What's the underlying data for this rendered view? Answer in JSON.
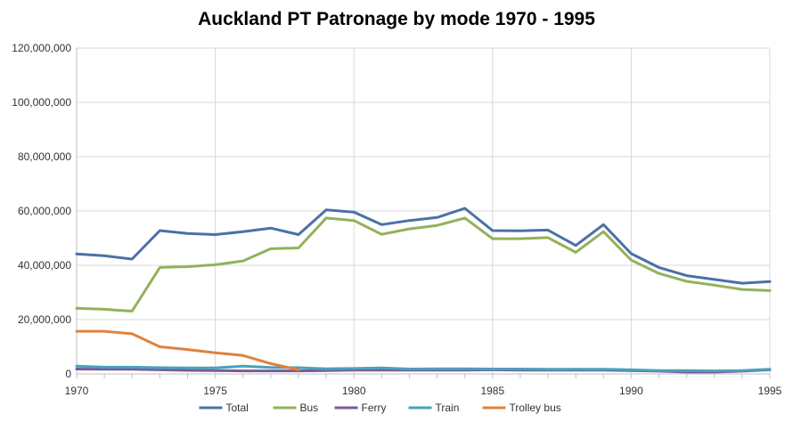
{
  "chart_data": {
    "type": "line",
    "title": "Auckland PT Patronage by mode 1970 - 1995",
    "xlabel": "",
    "ylabel": "",
    "xlim": [
      1970,
      1995
    ],
    "ylim": [
      0,
      120000000
    ],
    "x_ticks": [
      1970,
      1975,
      1980,
      1985,
      1990,
      1995
    ],
    "y_ticks": [
      0,
      20000000,
      40000000,
      60000000,
      80000000,
      100000000,
      120000000
    ],
    "y_tick_labels": [
      "0",
      "20,000,000",
      "40,000,000",
      "60,000,000",
      "80,000,000",
      "100,000,000",
      "120,000,000"
    ],
    "grid": true,
    "legend_position": "bottom",
    "x": [
      1970,
      1971,
      1972,
      1973,
      1974,
      1975,
      1976,
      1977,
      1978,
      1979,
      1980,
      1981,
      1982,
      1983,
      1984,
      1985,
      1986,
      1987,
      1988,
      1989,
      1990,
      1991,
      1992,
      1993,
      1994,
      1995
    ],
    "series": [
      {
        "name": "Total",
        "color": "#4a71a6",
        "values": [
          44200000,
          43500000,
          42300000,
          52800000,
          51700000,
          51300000,
          52400000,
          53700000,
          51300000,
          60400000,
          59600000,
          55000000,
          56500000,
          57600000,
          61000000,
          52800000,
          52700000,
          53000000,
          47300000,
          55000000,
          44300000,
          39200000,
          36200000,
          34800000,
          33400000,
          34000000
        ]
      },
      {
        "name": "Bus",
        "color": "#93b15a",
        "values": [
          24200000,
          23800000,
          23100000,
          39200000,
          39500000,
          40200000,
          41600000,
          46100000,
          46400000,
          57400000,
          56500000,
          51400000,
          53400000,
          54700000,
          57400000,
          49800000,
          49800000,
          50200000,
          44800000,
          52400000,
          41900000,
          37000000,
          34100000,
          32700000,
          31100000,
          30700000
        ]
      },
      {
        "name": "Ferry",
        "color": "#7a5a9a",
        "values": [
          1800000,
          1700000,
          1700000,
          1500000,
          1300000,
          1200000,
          1100000,
          1100000,
          1100000,
          1200000,
          1400000,
          1400000,
          1400000,
          1400000,
          1400000,
          1500000,
          1400000,
          1400000,
          1400000,
          1400000,
          1200000,
          1000000,
          700000,
          700000,
          1000000,
          1500000
        ]
      },
      {
        "name": "Train",
        "color": "#4aa1ba",
        "values": [
          2900000,
          2500000,
          2500000,
          2300000,
          2200000,
          2200000,
          2900000,
          2400000,
          2300000,
          1900000,
          2000000,
          2200000,
          1800000,
          1900000,
          1900000,
          1800000,
          1800000,
          1700000,
          1700000,
          1700000,
          1500000,
          1200000,
          1200000,
          1100000,
          1200000,
          1700000
        ]
      },
      {
        "name": "Trolley bus",
        "color": "#e0823d",
        "x": [
          1970,
          1971,
          1972,
          1973,
          1974,
          1975,
          1976,
          1977,
          1978
        ],
        "values": [
          15700000,
          15700000,
          14800000,
          10000000,
          9000000,
          7800000,
          6800000,
          3800000,
          1500000
        ]
      }
    ]
  }
}
